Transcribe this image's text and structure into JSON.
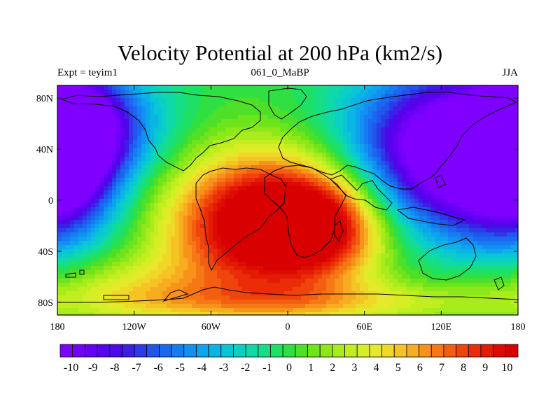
{
  "chart_data": {
    "type": "heatmap",
    "title": "Velocity Potential at 200 hPa (km2/s)",
    "left_label": "Expt = teyim1",
    "center_label": "061_0_MaBP",
    "right_label": "JJA",
    "x_range": [
      -180,
      180
    ],
    "y_range": [
      -90,
      90
    ],
    "x_ticks": [
      {
        "value": -180,
        "label": "180"
      },
      {
        "value": -120,
        "label": "120W"
      },
      {
        "value": -60,
        "label": "60W"
      },
      {
        "value": 0,
        "label": "0"
      },
      {
        "value": 60,
        "label": "60E"
      },
      {
        "value": 120,
        "label": "120E"
      },
      {
        "value": 180,
        "label": "180"
      }
    ],
    "y_ticks": [
      {
        "value": 80,
        "label": "80N"
      },
      {
        "value": 40,
        "label": "40N"
      },
      {
        "value": 0,
        "label": "0"
      },
      {
        "value": -40,
        "label": "40S"
      },
      {
        "value": -80,
        "label": "80S"
      }
    ],
    "field_centers": [
      {
        "name": "positive-max-atlantic-africa",
        "lon": -10,
        "lat": -15,
        "value": 10.5
      },
      {
        "name": "negative-min-asia-pacific",
        "lon": 130,
        "lat": 40,
        "value": -10.5
      },
      {
        "name": "negative-min-north-pacific",
        "lon": -170,
        "lat": 45,
        "value": -9.5
      }
    ],
    "colorbar": {
      "min": -10,
      "max": 10,
      "step": 0.5,
      "labels": [
        "-10",
        "-9",
        "-8",
        "-7",
        "-6",
        "-5",
        "-4",
        "-3",
        "-2",
        "-1",
        "0",
        "1",
        "2",
        "3",
        "4",
        "5",
        "6",
        "7",
        "8",
        "9",
        "10"
      ],
      "colors": [
        "#7f00ff",
        "#7300fa",
        "#6600f5",
        "#5900ef",
        "#4c08e8",
        "#3c1ee6",
        "#2d3ae8",
        "#2255ec",
        "#1a68ef",
        "#157cf1",
        "#1190f1",
        "#0da4ee",
        "#0ab5e6",
        "#0ac4d8",
        "#0ad0c4",
        "#0fd9a6",
        "#16de86",
        "#1ee064",
        "#30e042",
        "#4ee028",
        "#6ee41a",
        "#8ce81a",
        "#a8ec1c",
        "#c2ee20",
        "#d6ee26",
        "#e6e82a",
        "#f0d828",
        "#f5c424",
        "#f8ac1f",
        "#f8921a",
        "#f67814",
        "#f35e10",
        "#ef440c",
        "#ea2c08",
        "#e41a05",
        "#dd0c02",
        "#d80000"
      ]
    }
  }
}
